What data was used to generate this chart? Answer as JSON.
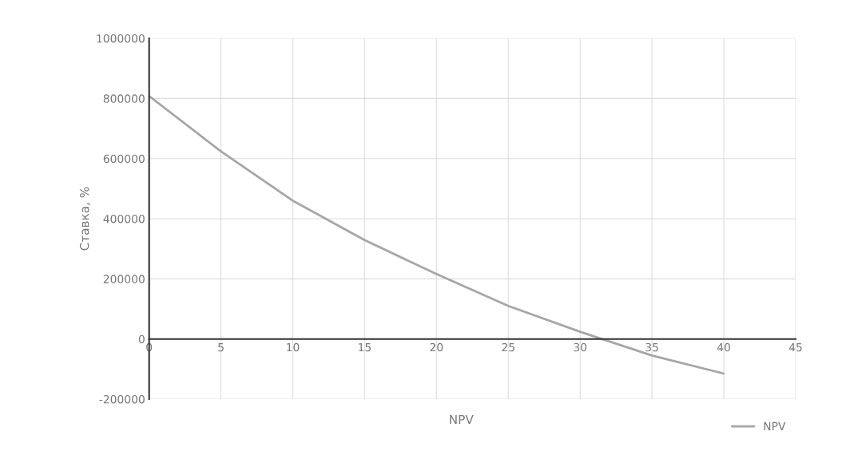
{
  "chart_data": {
    "type": "line",
    "xlabel": "NPV",
    "ylabel": "Ставка, %",
    "x": [
      0,
      5,
      10,
      15,
      20,
      25,
      30,
      35,
      40
    ],
    "series": [
      {
        "name": "NPV",
        "color": "#a6a6a6",
        "values": [
          808000,
          624000,
          460000,
          329000,
          216000,
          110000,
          24000,
          -55000,
          -115000
        ]
      }
    ],
    "xlim": [
      0,
      45
    ],
    "xticks": [
      0,
      5,
      10,
      15,
      20,
      25,
      30,
      35,
      40,
      45
    ],
    "ylim": [
      -200000,
      1000000
    ],
    "yticks": [
      -200000,
      0,
      200000,
      400000,
      600000,
      800000,
      1000000
    ],
    "grid": true,
    "legend": "bottom right",
    "marker": "none",
    "line_style": "solid"
  }
}
